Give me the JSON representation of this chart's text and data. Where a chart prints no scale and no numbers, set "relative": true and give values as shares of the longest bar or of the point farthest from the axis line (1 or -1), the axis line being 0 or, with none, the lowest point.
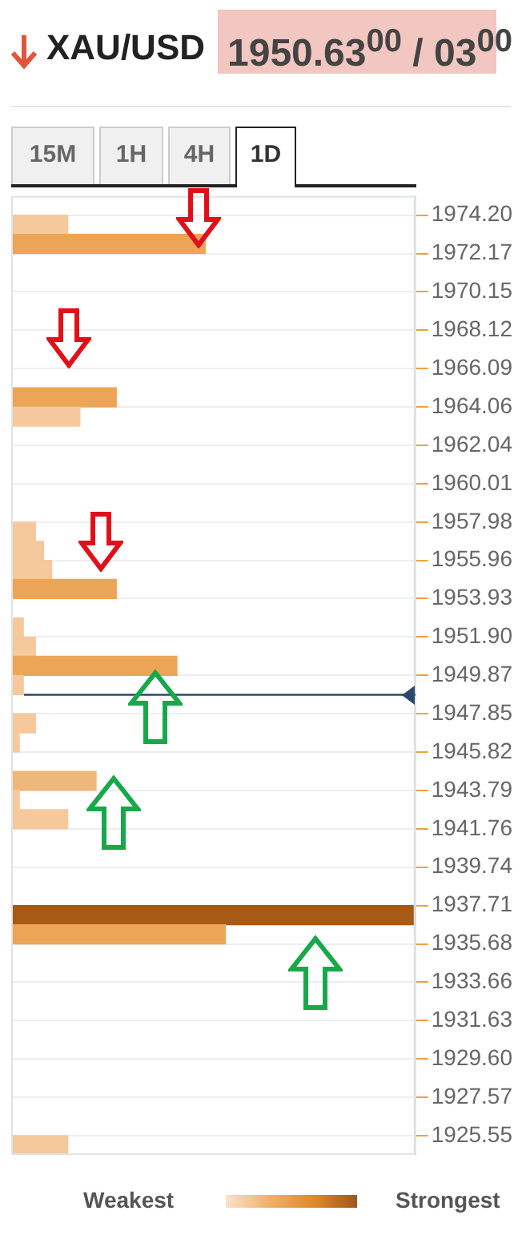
{
  "chart_data": {
    "type": "bar",
    "orientation": "horizontal",
    "relative": true,
    "title": "XAU/USD",
    "subtitle": "1950.63$^{00}$ / 03$^{00}$",
    "annotations": [
      "15M",
      "1H",
      "4H",
      "1D",
      "Weakest",
      "Strongest"
    ],
    "x": [
      1973.69,
      1972.68,
      1964.57,
      1963.55,
      1957.47,
      1956.46,
      1955.45,
      1954.44,
      1952.41,
      1951.39,
      1950.38,
      1949.36,
      1947.34,
      1946.33,
      1944.3,
      1943.28,
      1942.27,
      1937.2,
      1936.19,
      1925.04
    ],
    "values": [
      0.14,
      0.48,
      0.26,
      0.17,
      0.06,
      0.08,
      0.1,
      0.26,
      0.03,
      0.06,
      0.41,
      0.03,
      0.06,
      0.02,
      0.21,
      0.02,
      0.14,
      1,
      0.53,
      0.14
    ],
    "colors": [
      "#f5c99c",
      "#eca557",
      "#eca557",
      "#f5c99c",
      "#f5c99c",
      "#f5c99c",
      "#f5c99c",
      "#eca557",
      "#f5c99c",
      "#f5c99c",
      "#eca557",
      "#f5c99c",
      "#f5c99c",
      "#f5c99c",
      "#f0b77a",
      "#f5c99c",
      "#f5c99c",
      "#a65a16",
      "#eca557",
      "#f5c99c"
    ],
    "ylim": [
      1924.53,
      1975.21
    ],
    "yticks": [
      {
        "value": 1974.2,
        "label": "1974.20"
      },
      1972.17,
      1970.15,
      1968.12,
      1966.09,
      1964.06,
      1962.04,
      1960.01,
      1957.98,
      1955.96,
      1953.93,
      {
        "value": 1951.9,
        "label": "1951.90"
      },
      1949.87,
      1947.85,
      1945.82,
      1943.79,
      1941.76,
      1939.74,
      1937.71,
      1935.68,
      1933.66,
      1931.63,
      {
        "value": 1929.6,
        "label": "1929.60"
      },
      1927.57,
      1925.55
    ],
    "ref_lines": [
      {
        "axis": "y",
        "value": 1948.85,
        "color": "#2c4a6e"
      }
    ],
    "grid": "y",
    "legend": false
  }
}
